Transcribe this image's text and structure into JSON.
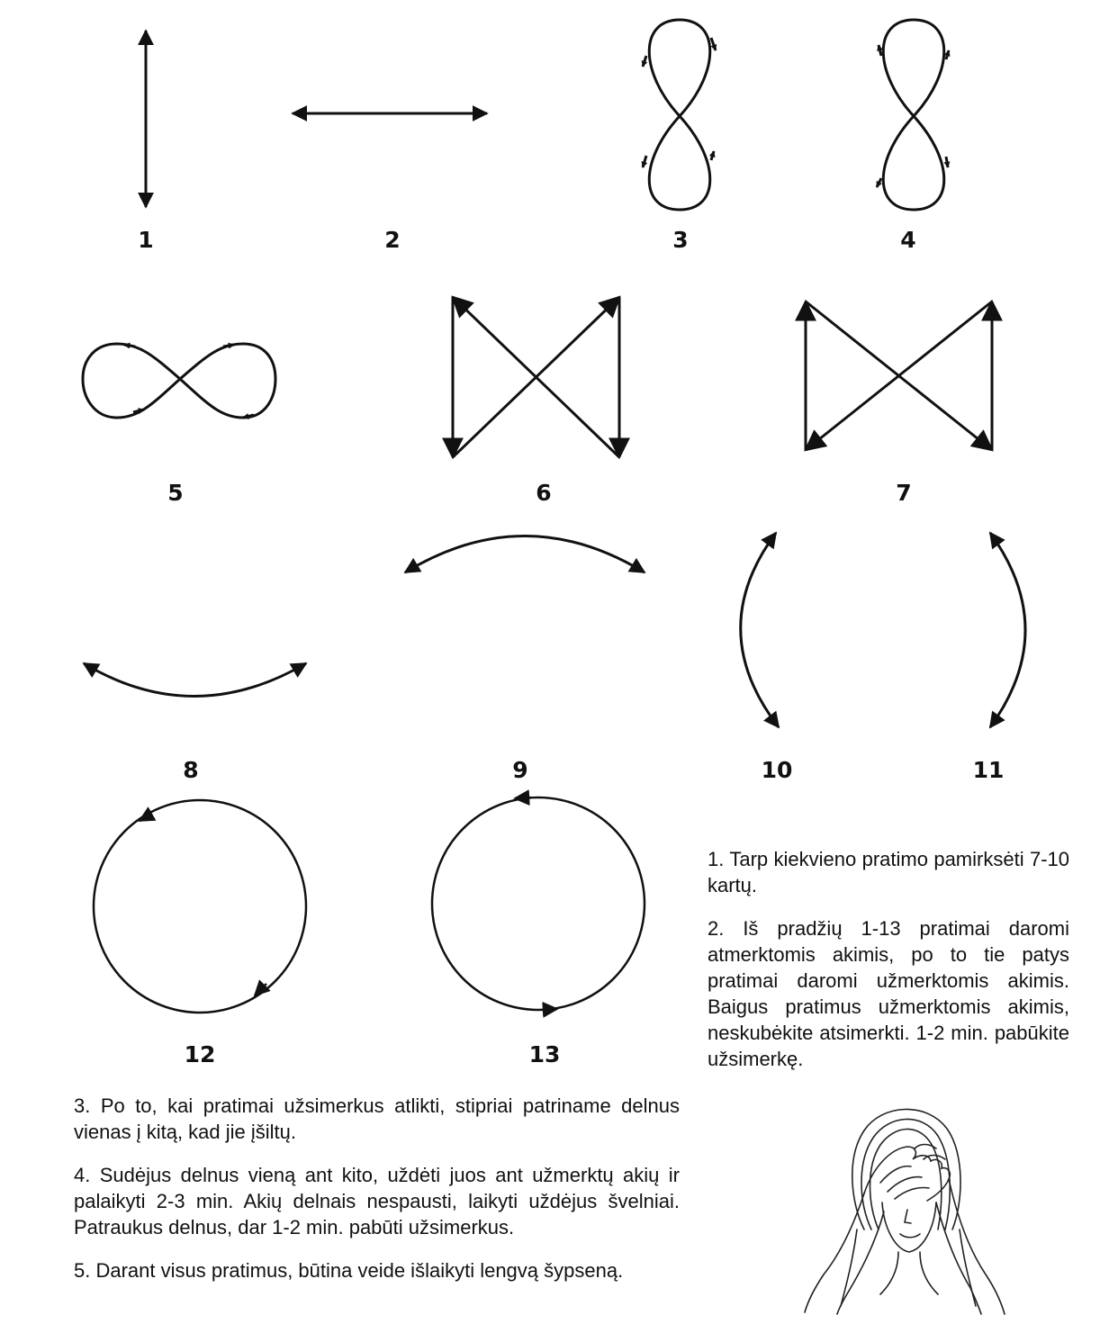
{
  "figure_labels": [
    "1",
    "2",
    "3",
    "4",
    "5",
    "6",
    "7",
    "8",
    "9",
    "10",
    "11",
    "12",
    "13"
  ],
  "instructions": {
    "i1": "1. Tarp kiekvieno pratimo pamirksėti 7-10 kartų.",
    "i2": "2. Iš pradžių 1-13 pratimai daromi atmerktomis akimis, po to tie patys pratimai daromi užmerktomis akimis. Baigus pratimus užmerktomis akimis, neskubėkite atsimerkti. 1-2 min. pabūkite užsimerkę.",
    "i3": "3. Po to, kai pratimai užsimerkus atlikti, stipriai patriname delnus vienas į kitą, kad jie įšiltų.",
    "i4": "4. Sudėjus delnus vieną ant kito, uždėti juos ant užmerktų akių ir palaikyti 2-3 min. Akių delnais nespausti, laikyti uždėjus švelniai. Patraukus delnus, dar 1-2 min. pabūti užsimerkus.",
    "i5": "5. Darant visus pratimus, būtina veide išlaikyti lengvą šypseną."
  },
  "illustration": "woman-covering-eyes-with-palms",
  "colors": {
    "ink": "#111111",
    "background": "#ffffff"
  }
}
